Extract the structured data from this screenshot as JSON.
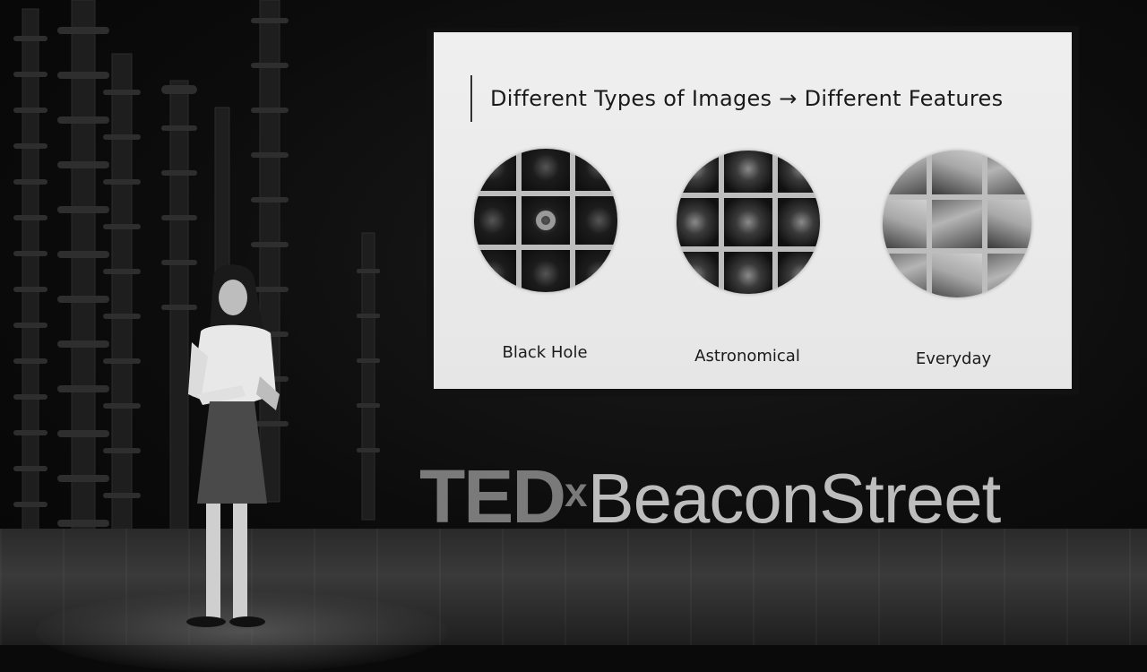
{
  "slide": {
    "title": "Different Types of Images → Different Features",
    "panels": [
      {
        "caption": "Black Hole"
      },
      {
        "caption": "Astronomical"
      },
      {
        "caption": "Everyday"
      }
    ]
  },
  "logo": {
    "ted": "TED",
    "x": "x",
    "event": "BeaconStreet"
  }
}
